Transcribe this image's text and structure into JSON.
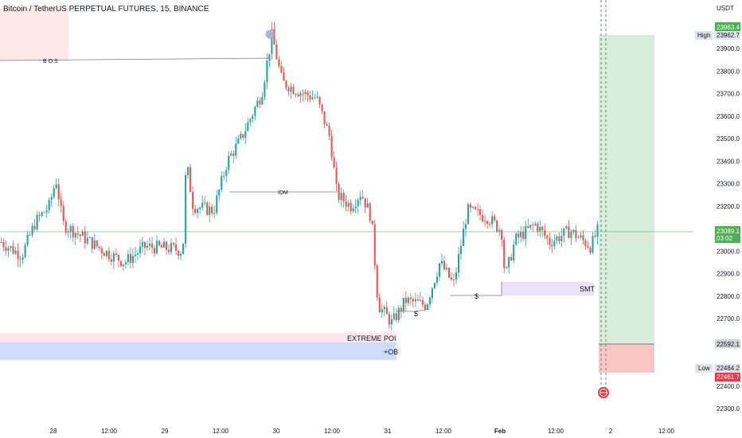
{
  "header": {
    "title": "Bitcoin / TetherUS PERPETUAL FUTURES, 15, BINANCE"
  },
  "colors": {
    "up": "#26a69a",
    "down": "#ef5350",
    "zone_red": "#fde0e0",
    "zone_blue": "#c9d8f8",
    "zone_purple": "#e8e3f6",
    "target": "#d4ecd6",
    "stop": "#f9c5c5",
    "last_price_line": "#81c784",
    "label_green": "#4caf50",
    "label_red": "#f23645",
    "label_grey": "#d1d4dc",
    "marker": "#aab4d4"
  },
  "price_axis": {
    "currency": "USDT",
    "ticks": [
      "23900.0",
      "23800.0",
      "23700.0",
      "23600.0",
      "23500.0",
      "23400.0",
      "23300.0",
      "23200.0",
      "23000.0",
      "22900.0",
      "22800.0",
      "22700.0",
      "22400.0",
      "22300.0"
    ],
    "labels": {
      "target": "23963.4",
      "high_tag": "High",
      "high_value": "23962.7",
      "last_price": "23089.1",
      "countdown": "03:02",
      "entry": "22592.1",
      "low_tag": "Low",
      "low_value": "22484.2",
      "stop": "22461.7"
    }
  },
  "time_axis": {
    "ticks": [
      "28",
      "12:00",
      "29",
      "12:00",
      "30",
      "12:00",
      "31",
      "12:00",
      "Feb",
      "12:00",
      "2",
      "12:00"
    ]
  },
  "annotations": {
    "bos": "B O S",
    "idm": "IDM",
    "extreme_poi": "EXTREME POI",
    "ob": "+OB",
    "smt": "SMT",
    "liquidity_1": "$",
    "liquidity_2": "$"
  },
  "chart_data": {
    "type": "candlestick",
    "symbol": "Bitcoin / TetherUS PERPETUAL FUTURES",
    "interval": "15",
    "exchange": "BINANCE",
    "ylim": [
      22250,
      24000
    ],
    "last_price": 23089.1,
    "high": 23962.7,
    "low": 22484.2,
    "close_path": [
      {
        "t": 0.0,
        "p": 23040
      },
      {
        "t": 0.03,
        "p": 22980
      },
      {
        "t": 0.05,
        "p": 23130
      },
      {
        "t": 0.07,
        "p": 23200
      },
      {
        "t": 0.08,
        "p": 23320
      },
      {
        "t": 0.09,
        "p": 23120
      },
      {
        "t": 0.12,
        "p": 23060
      },
      {
        "t": 0.15,
        "p": 23000
      },
      {
        "t": 0.18,
        "p": 22950
      },
      {
        "t": 0.21,
        "p": 23020
      },
      {
        "t": 0.25,
        "p": 23010
      },
      {
        "t": 0.265,
        "p": 23000
      },
      {
        "t": 0.27,
        "p": 23400
      },
      {
        "t": 0.28,
        "p": 23200
      },
      {
        "t": 0.31,
        "p": 23180
      },
      {
        "t": 0.33,
        "p": 23400
      },
      {
        "t": 0.35,
        "p": 23500
      },
      {
        "t": 0.38,
        "p": 23700
      },
      {
        "t": 0.395,
        "p": 23960
      },
      {
        "t": 0.41,
        "p": 23750
      },
      {
        "t": 0.44,
        "p": 23700
      },
      {
        "t": 0.46,
        "p": 23680
      },
      {
        "t": 0.48,
        "p": 23500
      },
      {
        "t": 0.49,
        "p": 23250
      },
      {
        "t": 0.51,
        "p": 23200
      },
      {
        "t": 0.525,
        "p": 23260
      },
      {
        "t": 0.54,
        "p": 23150
      },
      {
        "t": 0.55,
        "p": 22760
      },
      {
        "t": 0.57,
        "p": 22680
      },
      {
        "t": 0.59,
        "p": 22780
      },
      {
        "t": 0.62,
        "p": 22760
      },
      {
        "t": 0.64,
        "p": 22950
      },
      {
        "t": 0.66,
        "p": 22850
      },
      {
        "t": 0.68,
        "p": 23180
      },
      {
        "t": 0.71,
        "p": 23150
      },
      {
        "t": 0.73,
        "p": 23090
      },
      {
        "t": 0.735,
        "p": 22880
      },
      {
        "t": 0.75,
        "p": 23050
      },
      {
        "t": 0.78,
        "p": 23120
      },
      {
        "t": 0.8,
        "p": 23040
      },
      {
        "t": 0.83,
        "p": 23090
      },
      {
        "t": 0.86,
        "p": 23020
      },
      {
        "t": 0.87,
        "p": 23089.1
      }
    ],
    "zones": [
      {
        "name": "EXTREME POI",
        "from": 22645,
        "to": 22600
      },
      {
        "name": "+OB",
        "from": 22600,
        "to": 22520
      },
      {
        "name": "SMT",
        "from": 22860,
        "to": 22800
      },
      {
        "name": "Target",
        "from": 23963.4,
        "to": 22592.1
      },
      {
        "name": "Stop",
        "from": 22592.1,
        "to": 22461.7
      }
    ],
    "levels": [
      {
        "name": "B O S",
        "price": 23930
      },
      {
        "name": "IDM",
        "price": 23265
      },
      {
        "name": "$",
        "price": 22745
      },
      {
        "name": "$",
        "price": 22805
      }
    ]
  }
}
